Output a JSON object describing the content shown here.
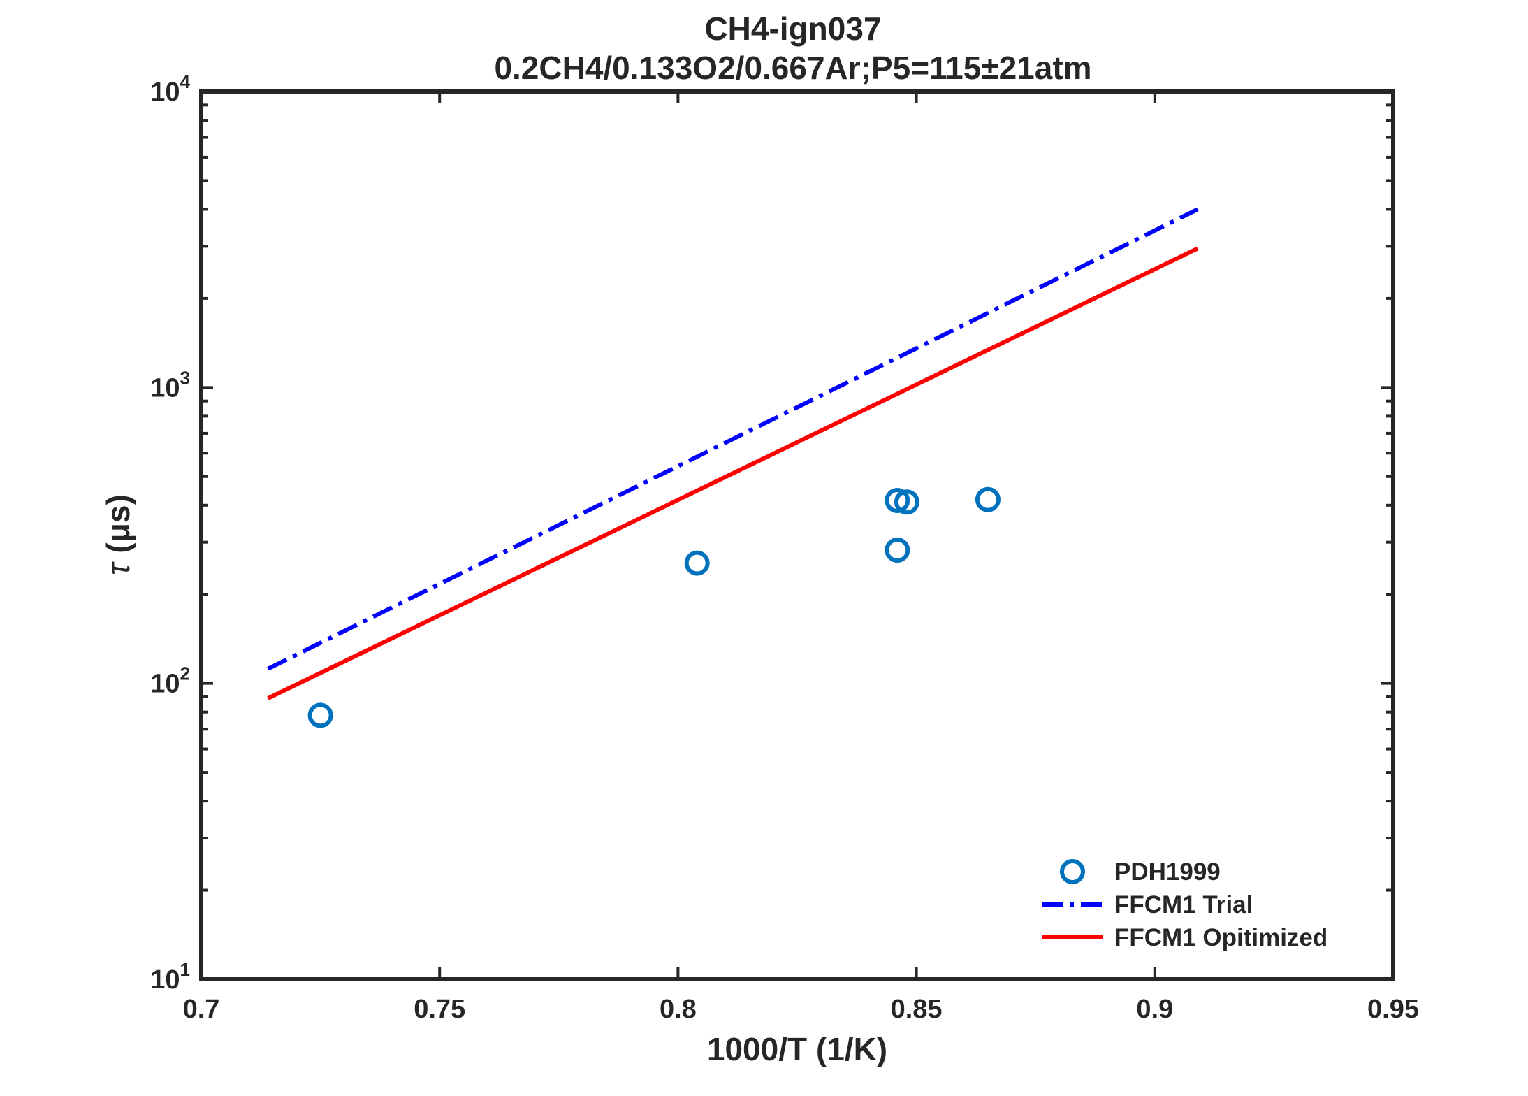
{
  "chart_data": {
    "type": "scatter",
    "title": "CH4-ign037",
    "subtitle": "0.2CH4/0.133O2/0.667Ar;P5=115±21atm",
    "xlabel": "1000/T (1/K)",
    "ylabel_symbol": "τ",
    "ylabel_unit": "(μs)",
    "xlim": [
      0.7,
      0.95
    ],
    "ylim": [
      10,
      10000
    ],
    "yscale": "log",
    "grid": false,
    "legend_position": "bottom-right",
    "x_ticks": [
      "0.7",
      "0.75",
      "0.8",
      "0.85",
      "0.9",
      "0.95"
    ],
    "y_ticks": [
      {
        "base": "10",
        "exp": "1",
        "value": 10
      },
      {
        "base": "10",
        "exp": "2",
        "value": 100
      },
      {
        "base": "10",
        "exp": "3",
        "value": 1000
      },
      {
        "base": "10",
        "exp": "4",
        "value": 10000
      }
    ],
    "series": [
      {
        "name": "PDH1999",
        "kind": "markers",
        "marker": "circle-open",
        "color": "#0072BD",
        "points": [
          {
            "x": 0.725,
            "y": 78
          },
          {
            "x": 0.804,
            "y": 255
          },
          {
            "x": 0.846,
            "y": 415
          },
          {
            "x": 0.848,
            "y": 410
          },
          {
            "x": 0.846,
            "y": 282
          },
          {
            "x": 0.865,
            "y": 418
          }
        ]
      },
      {
        "name": "FFCM1 Trial",
        "kind": "line",
        "style": "dash-dot",
        "color": "#0000FF",
        "points": [
          {
            "x": 0.714,
            "y": 112
          },
          {
            "x": 0.909,
            "y": 4000
          }
        ]
      },
      {
        "name": "FFCM1 Opitimized",
        "kind": "line",
        "style": "solid",
        "color": "#FF0000",
        "points": [
          {
            "x": 0.714,
            "y": 89
          },
          {
            "x": 0.909,
            "y": 2950
          }
        ]
      }
    ]
  }
}
